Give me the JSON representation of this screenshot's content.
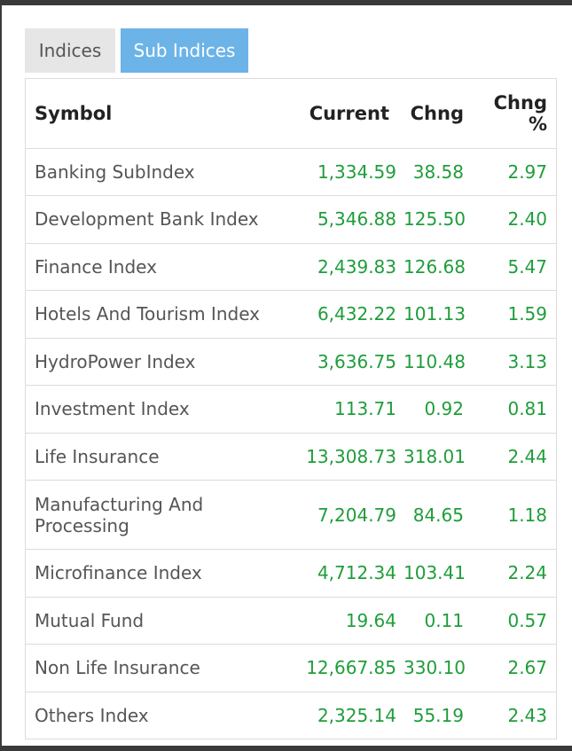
{
  "tabs": [
    {
      "label": "Indices",
      "active": false
    },
    {
      "label": "Sub Indices",
      "active": true
    }
  ],
  "table": {
    "headers": {
      "symbol": "Symbol",
      "current": "Current",
      "chng": "Chng",
      "chng_pct_line1": "Chng",
      "chng_pct_line2": "%"
    },
    "rows": [
      {
        "symbol": "Banking SubIndex",
        "current": "1,334.59",
        "chng": "38.58",
        "pct": "2.97"
      },
      {
        "symbol": "Development Bank Index",
        "current": "5,346.88",
        "chng": "125.50",
        "pct": "2.40"
      },
      {
        "symbol": "Finance Index",
        "current": "2,439.83",
        "chng": "126.68",
        "pct": "5.47"
      },
      {
        "symbol": "Hotels And Tourism Index",
        "current": "6,432.22",
        "chng": "101.13",
        "pct": "1.59"
      },
      {
        "symbol": "HydroPower Index",
        "current": "3,636.75",
        "chng": "110.48",
        "pct": "3.13"
      },
      {
        "symbol": "Investment Index",
        "current": "113.71",
        "chng": "0.92",
        "pct": "0.81"
      },
      {
        "symbol": "Life Insurance",
        "current": "13,308.73",
        "chng": "318.01",
        "pct": "2.44"
      },
      {
        "symbol": "Manufacturing And Processing",
        "current": "7,204.79",
        "chng": "84.65",
        "pct": "1.18"
      },
      {
        "symbol": "Microfinance Index",
        "current": "4,712.34",
        "chng": "103.41",
        "pct": "2.24"
      },
      {
        "symbol": "Mutual Fund",
        "current": "19.64",
        "chng": "0.11",
        "pct": "0.57"
      },
      {
        "symbol": "Non Life Insurance",
        "current": "12,667.85",
        "chng": "330.10",
        "pct": "2.67"
      },
      {
        "symbol": "Others Index",
        "current": "2,325.14",
        "chng": "55.19",
        "pct": "2.43"
      }
    ]
  },
  "colors": {
    "positive": "#1f9d3a",
    "active_tab": "#6cb4e8",
    "inactive_tab": "#e6e6e6"
  }
}
